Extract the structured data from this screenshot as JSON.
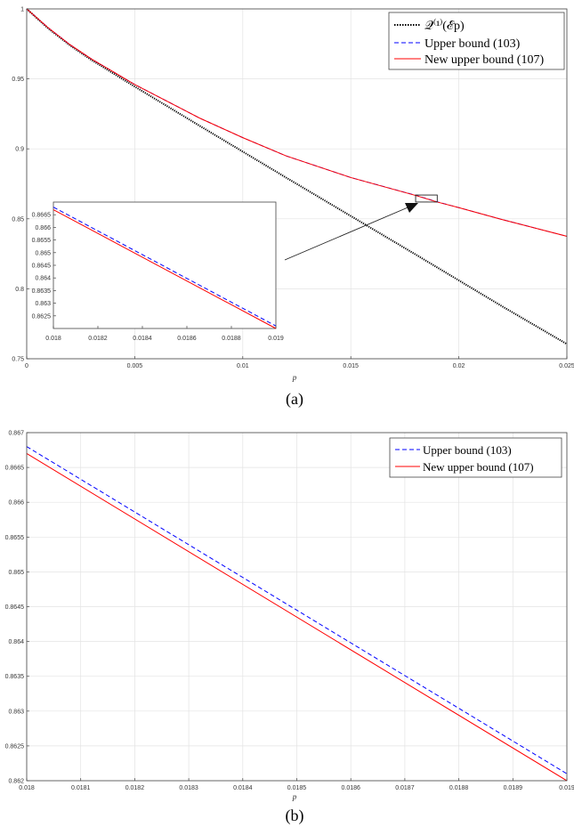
{
  "captions": {
    "a": "(a)",
    "b": "(b)"
  },
  "chart_data": [
    {
      "type": "line",
      "panel": "a",
      "xlabel": "p",
      "ylabel": "",
      "xlim": [
        0,
        0.025
      ],
      "ylim": [
        0.75,
        1
      ],
      "xticks": [
        0,
        0.005,
        0.01,
        0.015,
        0.02,
        0.025
      ],
      "xtick_labels": [
        "0",
        "0.005",
        "0.01",
        "0.015",
        "0.02",
        "0.025"
      ],
      "yticks": [
        0.75,
        0.8,
        0.85,
        0.9,
        0.95,
        1
      ],
      "ytick_labels": [
        "0.75",
        "0.8",
        "0.85",
        "0.9",
        "0.95",
        "1"
      ],
      "grid": true,
      "legend_position": "top-right",
      "series": [
        {
          "name": "𝒬⁽¹⁾(ℰp)",
          "color": "#000000",
          "style": "dotted",
          "x": [
            0,
            0.001,
            0.002,
            0.003,
            0.005,
            0.008,
            0.01,
            0.012,
            0.015,
            0.018,
            0.02,
            0.022,
            0.025
          ],
          "y": [
            1,
            0.986,
            0.974,
            0.9635,
            0.9445,
            0.9165,
            0.898,
            0.8795,
            0.852,
            0.8245,
            0.806,
            0.7875,
            0.7605
          ]
        },
        {
          "name": "Upper bound (103)",
          "color": "#0000ff",
          "style": "dashed",
          "x": [
            0,
            0.001,
            0.002,
            0.003,
            0.005,
            0.008,
            0.01,
            0.012,
            0.015,
            0.018,
            0.019,
            0.02,
            0.022,
            0.025
          ],
          "y": [
            1,
            0.9865,
            0.9745,
            0.9642,
            0.946,
            0.922,
            0.908,
            0.895,
            0.8795,
            0.8668,
            0.8621,
            0.858,
            0.8495,
            0.8375
          ]
        },
        {
          "name": "New upper bound (107)",
          "color": "#ff0000",
          "style": "solid",
          "x": [
            0,
            0.001,
            0.002,
            0.003,
            0.005,
            0.008,
            0.01,
            0.012,
            0.015,
            0.018,
            0.019,
            0.02,
            0.022,
            0.025
          ],
          "y": [
            1,
            0.9865,
            0.9745,
            0.9642,
            0.946,
            0.922,
            0.908,
            0.895,
            0.8795,
            0.8667,
            0.862,
            0.858,
            0.8495,
            0.8375
          ]
        }
      ],
      "annotations": {
        "zoom_box": {
          "x": [
            0.018,
            0.019
          ],
          "y": [
            0.862,
            0.867
          ]
        },
        "arrow": true
      }
    },
    {
      "type": "line",
      "panel": "a-inset",
      "xlim": [
        0.018,
        0.019
      ],
      "ylim": [
        0.862,
        0.867
      ],
      "xticks": [
        0.018,
        0.0182,
        0.0184,
        0.0186,
        0.0188,
        0.019
      ],
      "xtick_labels": [
        "0.018",
        "0.0182",
        "0.0184",
        "0.0186",
        "0.0188",
        "0.019"
      ],
      "yticks": [
        0.8625,
        0.863,
        0.8635,
        0.864,
        0.8645,
        0.865,
        0.8655,
        0.866,
        0.8665
      ],
      "ytick_labels": [
        "0.8625",
        "0.863",
        "0.8635",
        "0.864",
        "0.8645",
        "0.865",
        "0.8655",
        "0.866",
        "0.8665"
      ],
      "grid": false,
      "series": [
        {
          "name": "Upper bound (103)",
          "color": "#0000ff",
          "style": "dashed",
          "x": [
            0.018,
            0.019
          ],
          "y": [
            0.8668,
            0.8621
          ]
        },
        {
          "name": "New upper bound (107)",
          "color": "#ff0000",
          "style": "solid",
          "x": [
            0.018,
            0.019
          ],
          "y": [
            0.8667,
            0.862
          ]
        }
      ]
    },
    {
      "type": "line",
      "panel": "b",
      "xlabel": "p",
      "ylabel": "",
      "xlim": [
        0.018,
        0.019
      ],
      "ylim": [
        0.862,
        0.867
      ],
      "xticks": [
        0.018,
        0.0181,
        0.0182,
        0.0183,
        0.0184,
        0.0185,
        0.0186,
        0.0187,
        0.0188,
        0.0189,
        0.019
      ],
      "xtick_labels": [
        "0.018",
        "0.0181",
        "0.0182",
        "0.0183",
        "0.0184",
        "0.0185",
        "0.0186",
        "0.0187",
        "0.0188",
        "0.0189",
        "0.019"
      ],
      "yticks": [
        0.862,
        0.8625,
        0.863,
        0.8635,
        0.864,
        0.8645,
        0.865,
        0.8655,
        0.866,
        0.8665,
        0.867
      ],
      "ytick_labels": [
        "0.862",
        "0.8625",
        "0.863",
        "0.8635",
        "0.864",
        "0.8645",
        "0.865",
        "0.8655",
        "0.866",
        "0.8665",
        "0.867"
      ],
      "grid": true,
      "legend_position": "top-right",
      "series": [
        {
          "name": "Upper bound (103)",
          "color": "#0000ff",
          "style": "dashed",
          "x": [
            0.018,
            0.019
          ],
          "y": [
            0.8668,
            0.8621
          ]
        },
        {
          "name": "New upper bound (107)",
          "color": "#ff0000",
          "style": "solid",
          "x": [
            0.018,
            0.019
          ],
          "y": [
            0.8667,
            0.862
          ]
        }
      ]
    }
  ]
}
